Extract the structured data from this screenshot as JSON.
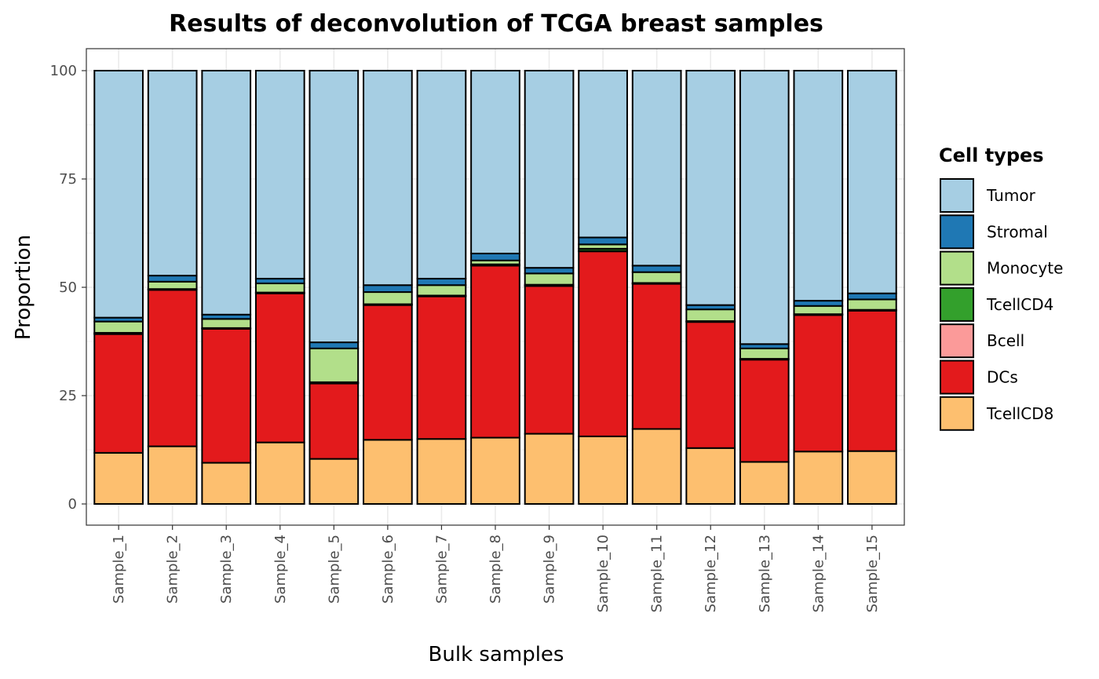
{
  "chart_data": {
    "type": "bar",
    "stacked": true,
    "title": "Results of deconvolution of TCGA breast samples",
    "xlabel": "Bulk samples",
    "ylabel": "Proportion",
    "ylim": [
      0,
      100
    ],
    "yticks": [
      0,
      25,
      50,
      75,
      100
    ],
    "grid": true,
    "legend_position": "right",
    "legend_title": "Cell types",
    "categories": [
      "Sample_1",
      "Sample_2",
      "Sample_3",
      "Sample_4",
      "Sample_5",
      "Sample_6",
      "Sample_7",
      "Sample_8",
      "Sample_9",
      "Sample_10",
      "Sample_11",
      "Sample_12",
      "Sample_13",
      "Sample_14",
      "Sample_15"
    ],
    "series": [
      {
        "name": "TcellCD8",
        "color": "#FDBF6F",
        "values": [
          11.8,
          13.3,
          9.5,
          14.2,
          10.4,
          14.8,
          15.0,
          15.3,
          16.2,
          15.6,
          17.3,
          12.9,
          9.7,
          12.1,
          12.2
        ]
      },
      {
        "name": "DCs",
        "color": "#E31A1C",
        "values": [
          27.4,
          36.1,
          30.9,
          34.4,
          17.4,
          31.1,
          32.9,
          39.7,
          34.1,
          42.7,
          33.5,
          29.1,
          23.6,
          31.5,
          32.4
        ]
      },
      {
        "name": "Bcell",
        "color": "#FB9A99",
        "values": [
          0.1,
          0.1,
          0.1,
          0.1,
          0.1,
          0.1,
          0.1,
          0.1,
          0.1,
          0.1,
          0.1,
          0.1,
          0.1,
          0.1,
          0.1
        ]
      },
      {
        "name": "TcellCD4",
        "color": "#33A02C",
        "values": [
          0.2,
          0.1,
          0.1,
          0.1,
          0.2,
          0.1,
          0.1,
          0.2,
          0.2,
          0.5,
          0.1,
          0.1,
          0.1,
          0.1,
          0.1
        ]
      },
      {
        "name": "Monocyte",
        "color": "#B2DF8A",
        "values": [
          2.6,
          1.7,
          2.1,
          2.1,
          7.8,
          2.8,
          2.4,
          0.9,
          2.6,
          1.0,
          2.5,
          2.7,
          2.4,
          1.9,
          2.4
        ]
      },
      {
        "name": "Stromal",
        "color": "#1F78B4",
        "values": [
          0.9,
          1.4,
          1.0,
          1.1,
          1.4,
          1.6,
          1.5,
          1.6,
          1.3,
          1.6,
          1.5,
          1.0,
          1.0,
          1.2,
          1.4
        ]
      },
      {
        "name": "Tumor",
        "color": "#A6CEE3",
        "values": [
          57.0,
          47.3,
          56.3,
          48.0,
          62.7,
          49.5,
          48.0,
          42.2,
          45.5,
          38.5,
          45.0,
          54.1,
          63.1,
          53.1,
          51.4
        ]
      }
    ],
    "legend_order": [
      "Tumor",
      "Stromal",
      "Monocyte",
      "TcellCD4",
      "Bcell",
      "DCs",
      "TcellCD8"
    ]
  }
}
